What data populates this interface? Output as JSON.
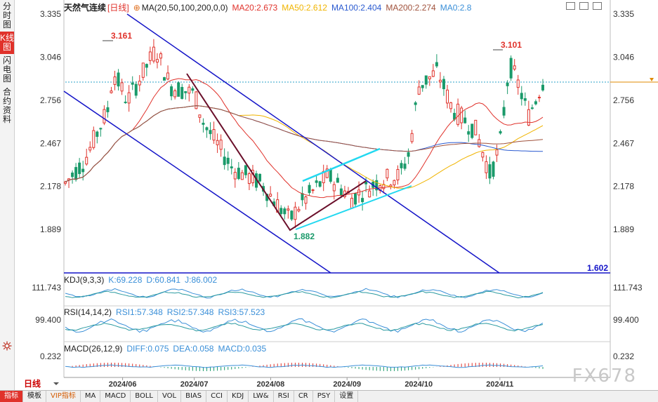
{
  "sidebar": {
    "tabs": [
      {
        "label": "分时图",
        "active": false
      },
      {
        "label": "K线图",
        "active": true
      },
      {
        "label": "闪电图",
        "active": false
      },
      {
        "label": "合约资料",
        "active": false
      }
    ]
  },
  "header": {
    "title": "天然气连续",
    "period_tag": "[日线]",
    "ma_params": "MA(20,50,100,200,0,0)",
    "ma_values": [
      {
        "label": "MA20:2.673",
        "color": "#e0322b"
      },
      {
        "label": "MA50:2.612",
        "color": "#f0b400"
      },
      {
        "label": "MA100:2.404",
        "color": "#2a5ad0"
      },
      {
        "label": "MA200:2.274",
        "color": "#a0523c"
      },
      {
        "label": "MA0:2.8",
        "color": "#3a8fd8"
      }
    ]
  },
  "price_axis": {
    "labels": [
      "3.335",
      "3.046",
      "2.756",
      "2.467",
      "2.178",
      "1.889"
    ],
    "left_labels": [
      "3.335",
      "3.046",
      "2.756",
      "2.467",
      "2.178",
      "1.889"
    ],
    "current_price": "2.878"
  },
  "annotations": {
    "high1": "3.161",
    "high2": "3.101",
    "low1": "1.882",
    "bottom_line": "1.602"
  },
  "kdj": {
    "title": "KDJ(9,3,3)",
    "values": [
      {
        "label": "K:69.228",
        "color": "#3a8fd8"
      },
      {
        "label": "D:60.841",
        "color": "#3a8fd8"
      },
      {
        "label": "J:86.002",
        "color": "#3a8fd8"
      }
    ],
    "axis_label": "111.743"
  },
  "rsi": {
    "title": "RSI(14,14,2)",
    "values": [
      {
        "label": "RSI1:57.348",
        "color": "#3a8fd8"
      },
      {
        "label": "RSI2:57.348",
        "color": "#3a8fd8"
      },
      {
        "label": "RSI3:57.523",
        "color": "#3a8fd8"
      }
    ],
    "axis_label": "99.400"
  },
  "macd": {
    "title": "MACD(26,12,9)",
    "values": [
      {
        "label": "DIFF:0.075",
        "color": "#3a8fd8"
      },
      {
        "label": "DEA:0.058",
        "color": "#3a8fd8"
      },
      {
        "label": "MACD:0.035",
        "color": "#3a8fd8"
      }
    ],
    "axis_label": "0.232"
  },
  "x_axis": {
    "labels": [
      "2024/06",
      "2024/07",
      "2024/08",
      "2024/09",
      "2024/10",
      "2024/11"
    ]
  },
  "period_selector": "日线",
  "indicator_tabs": [
    {
      "label": "指标",
      "active": true,
      "vip": false
    },
    {
      "label": "模板",
      "active": false,
      "vip": false
    },
    {
      "label": "VIP指标",
      "active": false,
      "vip": true
    },
    {
      "label": "MA",
      "active": false,
      "vip": false
    },
    {
      "label": "MACD",
      "active": false,
      "vip": false
    },
    {
      "label": "BOLL",
      "active": false,
      "vip": false
    },
    {
      "label": "VOL",
      "active": false,
      "vip": false
    },
    {
      "label": "BIAS",
      "active": false,
      "vip": false
    },
    {
      "label": "CCI",
      "active": false,
      "vip": false
    },
    {
      "label": "KDJ",
      "active": false,
      "vip": false
    },
    {
      "label": "LW&",
      "active": false,
      "vip": false
    },
    {
      "label": "RSI",
      "active": false,
      "vip": false
    },
    {
      "label": "CR",
      "active": false,
      "vip": false
    },
    {
      "label": "PSY",
      "active": false,
      "vip": false
    },
    {
      "label": "设置",
      "active": false,
      "vip": false
    }
  ],
  "watermark": "FX678",
  "colors": {
    "up": "#e0322b",
    "down": "#1a9a6a",
    "channel": "#1414c8",
    "cyan": "#22d8f0",
    "wave": "#6a0f2a"
  }
}
